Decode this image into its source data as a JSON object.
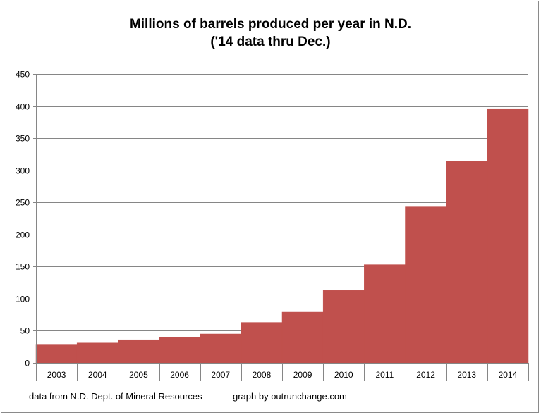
{
  "chart_data": {
    "type": "bar",
    "title": "Millions of barrels produced per year in N.D.",
    "subtitle": "('14 data thru Dec.)",
    "xlabel": "",
    "ylabel": "",
    "categories": [
      "2003",
      "2004",
      "2005",
      "2006",
      "2007",
      "2008",
      "2009",
      "2010",
      "2011",
      "2012",
      "2013",
      "2014"
    ],
    "values": [
      29,
      31,
      36,
      40,
      45,
      63,
      79,
      113,
      153,
      243,
      314,
      396
    ],
    "ylim": [
      0,
      450
    ],
    "yticks": [
      "0",
      "50",
      "100",
      "150",
      "200",
      "250",
      "300",
      "350",
      "400",
      "450"
    ],
    "ytick_values": [
      0,
      50,
      100,
      150,
      200,
      250,
      300,
      350,
      400,
      450
    ],
    "grid": true,
    "bar_color": "#c0504d",
    "gridline_color": "#868686"
  },
  "footer": {
    "source": "data from N.D. Dept. of Mineral Resources",
    "credit": "graph by outrunchange.com"
  }
}
